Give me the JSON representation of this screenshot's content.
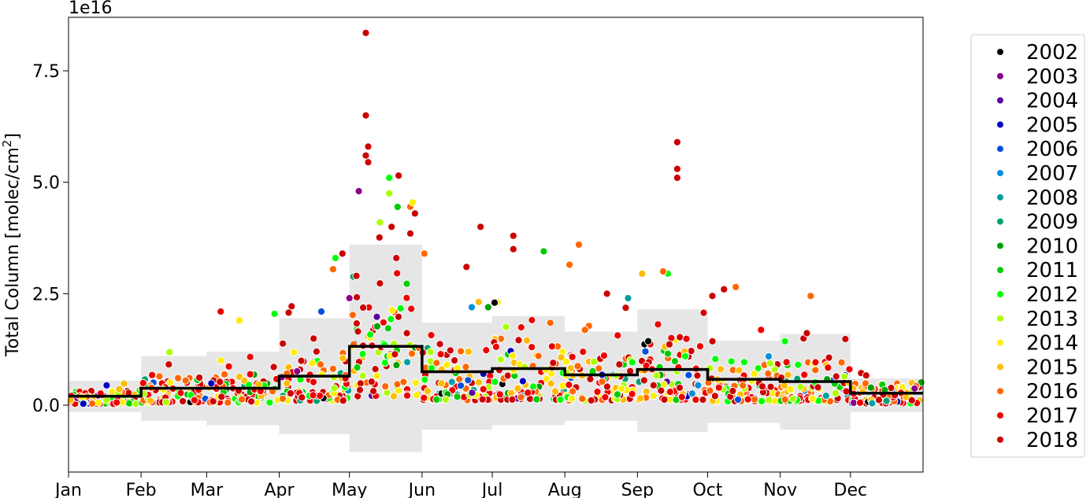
{
  "chart_data": {
    "type": "scatter",
    "title": "",
    "ylabel": "Total Column [molec/cm",
    "ylabel_sup": "2",
    "ylabel_end": "]",
    "y_offset_label": "1e16",
    "xlim": [
      0,
      365
    ],
    "ylim": [
      -1.5,
      8.7
    ],
    "x_ticks": [
      {
        "x": 0,
        "label": "Jan"
      },
      {
        "x": 31,
        "label": "Feb"
      },
      {
        "x": 59,
        "label": "Mar"
      },
      {
        "x": 90,
        "label": "Apr"
      },
      {
        "x": 120,
        "label": "May"
      },
      {
        "x": 151,
        "label": "Jun"
      },
      {
        "x": 181,
        "label": "Jul"
      },
      {
        "x": 212,
        "label": "Aug"
      },
      {
        "x": 243,
        "label": "Sep"
      },
      {
        "x": 273,
        "label": "Oct"
      },
      {
        "x": 304,
        "label": "Nov"
      },
      {
        "x": 334,
        "label": "Dec"
      }
    ],
    "y_ticks": [
      {
        "y": 0,
        "label": "0.0"
      },
      {
        "y": 2.5,
        "label": "2.5"
      },
      {
        "y": 5,
        "label": "5.0"
      },
      {
        "y": 7.5,
        "label": "7.5"
      }
    ],
    "legend_position": "outside-right",
    "series_colors": {
      "2002": "#000000",
      "2003": "#8b008b",
      "2004": "#5a00a0",
      "2005": "#0000c0",
      "2006": "#0050dd",
      "2007": "#0090dd",
      "2008": "#00a0a0",
      "2009": "#00a070",
      "2010": "#00a000",
      "2011": "#00cc00",
      "2012": "#00ff00",
      "2013": "#aaff00",
      "2014": "#ffee00",
      "2015": "#ffbb00",
      "2016": "#ff6600",
      "2017": "#ee0000",
      "2018": "#cc0000"
    },
    "legend": [
      "2002",
      "2003",
      "2004",
      "2005",
      "2006",
      "2007",
      "2008",
      "2009",
      "2010",
      "2011",
      "2012",
      "2013",
      "2014",
      "2015",
      "2016",
      "2017",
      "2018"
    ],
    "monthly_median": [
      0.2,
      0.38,
      0.38,
      0.65,
      1.32,
      0.75,
      0.82,
      0.68,
      0.8,
      0.58,
      0.53,
      0.27
    ],
    "band_upper": [
      0.55,
      1.1,
      1.2,
      1.95,
      3.6,
      1.85,
      2.0,
      1.65,
      2.15,
      1.45,
      1.6,
      0.6
    ],
    "band_lower": [
      -0.15,
      -0.35,
      -0.45,
      -0.65,
      -1.05,
      -0.55,
      -0.45,
      -0.35,
      -0.6,
      -0.4,
      -0.55,
      -0.15
    ],
    "outliers": [
      {
        "x": 127,
        "y": 8.35,
        "year": "2018"
      },
      {
        "x": 127,
        "y": 6.5,
        "year": "2018"
      },
      {
        "x": 128,
        "y": 5.8,
        "year": "2018"
      },
      {
        "x": 127,
        "y": 5.6,
        "year": "2018"
      },
      {
        "x": 128,
        "y": 5.45,
        "year": "2018"
      },
      {
        "x": 124,
        "y": 4.8,
        "year": "2003"
      },
      {
        "x": 141,
        "y": 5.15,
        "year": "2018"
      },
      {
        "x": 137,
        "y": 5.1,
        "year": "2012"
      },
      {
        "x": 137,
        "y": 4.75,
        "year": "2013"
      },
      {
        "x": 146,
        "y": 4.45,
        "year": "2016"
      },
      {
        "x": 148,
        "y": 4.3,
        "year": "2018"
      },
      {
        "x": 147,
        "y": 4.55,
        "year": "2014"
      },
      {
        "x": 133,
        "y": 4.1,
        "year": "2013"
      },
      {
        "x": 138,
        "y": 4.0,
        "year": "2018"
      },
      {
        "x": 176,
        "y": 4.0,
        "year": "2018"
      },
      {
        "x": 146,
        "y": 3.85,
        "year": "2018"
      },
      {
        "x": 218,
        "y": 3.6,
        "year": "2016"
      },
      {
        "x": 260,
        "y": 5.9,
        "year": "2018"
      },
      {
        "x": 260,
        "y": 5.3,
        "year": "2018"
      },
      {
        "x": 260,
        "y": 5.1,
        "year": "2018"
      },
      {
        "x": 190,
        "y": 3.8,
        "year": "2018"
      },
      {
        "x": 203,
        "y": 3.45,
        "year": "2011"
      },
      {
        "x": 190,
        "y": 3.5,
        "year": "2018"
      },
      {
        "x": 117,
        "y": 3.4,
        "year": "2018"
      },
      {
        "x": 114,
        "y": 3.3,
        "year": "2012"
      },
      {
        "x": 140,
        "y": 3.3,
        "year": "2018"
      },
      {
        "x": 214,
        "y": 3.15,
        "year": "2016"
      },
      {
        "x": 152,
        "y": 3.4,
        "year": "2016"
      },
      {
        "x": 113,
        "y": 3.05,
        "year": "2016"
      },
      {
        "x": 182,
        "y": 2.3,
        "year": "2002"
      },
      {
        "x": 280,
        "y": 2.6,
        "year": "2018"
      },
      {
        "x": 285,
        "y": 2.65,
        "year": "2016"
      },
      {
        "x": 239,
        "y": 2.4,
        "year": "2008"
      },
      {
        "x": 256,
        "y": 2.95,
        "year": "2012"
      },
      {
        "x": 254,
        "y": 3.0,
        "year": "2016"
      },
      {
        "x": 245,
        "y": 2.95,
        "year": "2015"
      },
      {
        "x": 317,
        "y": 2.45,
        "year": "2016"
      },
      {
        "x": 65,
        "y": 2.1,
        "year": "2017"
      },
      {
        "x": 73,
        "y": 1.9,
        "year": "2014"
      },
      {
        "x": 88,
        "y": 2.05,
        "year": "2012"
      },
      {
        "x": 108,
        "y": 2.1,
        "year": "2006"
      },
      {
        "x": 120,
        "y": 2.4,
        "year": "2003"
      },
      {
        "x": 123,
        "y": 2.9,
        "year": "2018"
      },
      {
        "x": 170,
        "y": 3.1,
        "year": "2018"
      },
      {
        "x": 275,
        "y": 2.45,
        "year": "2018"
      },
      {
        "x": 230,
        "y": 2.5,
        "year": "2018"
      }
    ],
    "point_seed": 20180815,
    "points_per_month": 90
  }
}
